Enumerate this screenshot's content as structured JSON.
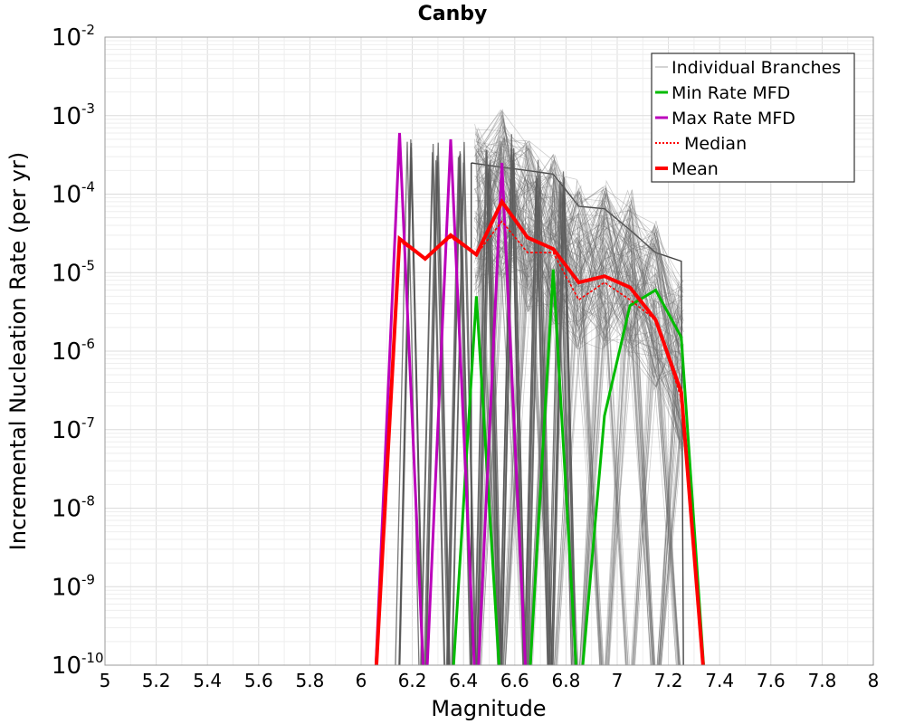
{
  "chart_data": {
    "type": "line",
    "title": "Canby",
    "xlabel": "Magnitude",
    "ylabel": "Incremental Nucleation Rate (per yr)",
    "xlim": [
      5,
      8
    ],
    "ylim": [
      1e-10,
      0.01
    ],
    "y_scale": "log",
    "grid": true,
    "legend_position": "top-right",
    "x_ticks": [
      "5",
      "5.2",
      "5.4",
      "5.6",
      "5.8",
      "6",
      "6.2",
      "6.4",
      "6.6",
      "6.8",
      "7",
      "7.2",
      "7.4",
      "7.6",
      "7.8",
      "8"
    ],
    "y_ticks": [
      {
        "base": "10",
        "exp": "-10"
      },
      {
        "base": "10",
        "exp": "-9"
      },
      {
        "base": "10",
        "exp": "-8"
      },
      {
        "base": "10",
        "exp": "-7"
      },
      {
        "base": "10",
        "exp": "-6"
      },
      {
        "base": "10",
        "exp": "-5"
      },
      {
        "base": "10",
        "exp": "-4"
      },
      {
        "base": "10",
        "exp": "-3"
      },
      {
        "base": "10",
        "exp": "-2"
      }
    ],
    "x": [
      6.05,
      6.15,
      6.25,
      6.35,
      6.45,
      6.55,
      6.65,
      6.75,
      6.85,
      6.95,
      7.05,
      7.15,
      7.25,
      7.35
    ],
    "series": [
      {
        "name": "Individual Branches",
        "color": "#999999"
      },
      {
        "name": "Min Rate MFD",
        "color": "#00bb00",
        "values": [
          null,
          null,
          null,
          null,
          5e-06,
          null,
          null,
          1.1e-05,
          null,
          1.5e-07,
          3.8e-06,
          6e-06,
          1.5e-06,
          null
        ]
      },
      {
        "name": "Max Rate MFD",
        "color": "#bb00bb",
        "values": [
          null,
          0.0006,
          null,
          0.0005,
          null,
          0.00025,
          null,
          null,
          null,
          null,
          null,
          null,
          null,
          null
        ]
      },
      {
        "name": "Median",
        "color": "#ff0000",
        "values": [
          null,
          2.5e-05,
          1.5e-05,
          2.8e-05,
          1.7e-05,
          4.5e-05,
          1.8e-05,
          1.8e-05,
          4.5e-06,
          7.5e-06,
          4.5e-06,
          2.5e-06,
          2.5e-07,
          null
        ]
      },
      {
        "name": "Mean",
        "color": "#ff0000",
        "values": [
          null,
          2.7e-05,
          1.5e-05,
          3e-05,
          1.7e-05,
          8e-05,
          2.8e-05,
          2e-05,
          7.5e-06,
          9e-06,
          6.5e-06,
          2.5e-06,
          3e-07,
          null
        ]
      }
    ]
  }
}
